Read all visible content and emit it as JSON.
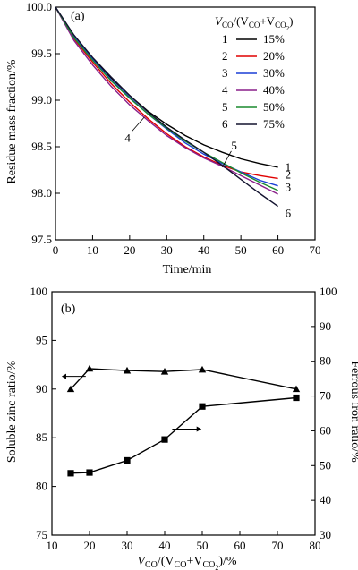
{
  "chart_data": [
    {
      "type": "line",
      "panel_label": "(a)",
      "xlabel": "Time/min",
      "ylabel": "Residue mass fraction/%",
      "xlim": [
        0,
        70
      ],
      "ylim": [
        97.5,
        100.0
      ],
      "x_ticks": [
        "0",
        "10",
        "20",
        "30",
        "40",
        "50",
        "60",
        "70"
      ],
      "y_ticks": [
        "97.5",
        "98.0",
        "98.5",
        "99.0",
        "99.5",
        "100.0"
      ],
      "grid": false,
      "legend": {
        "placement": "top-right",
        "title_main": "V",
        "title_sub1": "CO",
        "title_mid": "/(V",
        "title_sub2": "CO",
        "title_plus": "+V",
        "title_sub3": "CO",
        "title_sub4": "2",
        "title_close": ")",
        "entries": [
          {
            "id": "1",
            "label": "15%"
          },
          {
            "id": "2",
            "label": "20%"
          },
          {
            "id": "3",
            "label": "30%"
          },
          {
            "id": "4",
            "label": "40%"
          },
          {
            "id": "5",
            "label": "50%"
          },
          {
            "id": "6",
            "label": "75%"
          }
        ]
      },
      "series": [
        {
          "name": "1",
          "label": "1",
          "color": "#000000",
          "x": [
            0,
            5,
            10,
            15,
            20,
            25,
            30,
            35,
            40,
            45,
            50,
            55,
            60
          ],
          "y": [
            100.0,
            99.68,
            99.45,
            99.24,
            99.05,
            98.88,
            98.74,
            98.62,
            98.52,
            98.44,
            98.37,
            98.32,
            98.28
          ]
        },
        {
          "name": "2",
          "label": "2",
          "color": "#e00000",
          "x": [
            0,
            5,
            10,
            15,
            20,
            25,
            30,
            35,
            40,
            45,
            50,
            55,
            60
          ],
          "y": [
            100.0,
            99.66,
            99.41,
            99.18,
            98.98,
            98.8,
            98.64,
            98.5,
            98.39,
            98.3,
            98.23,
            98.19,
            98.16
          ]
        },
        {
          "name": "3",
          "label": "3",
          "color": "#1a3fd6",
          "x": [
            0,
            5,
            10,
            15,
            20,
            25,
            30,
            35,
            40,
            45,
            50,
            55,
            60
          ],
          "y": [
            100.0,
            99.68,
            99.44,
            99.22,
            99.03,
            98.85,
            98.69,
            98.54,
            98.42,
            98.32,
            98.23,
            98.14,
            98.08
          ]
        },
        {
          "name": "4",
          "label": "4",
          "color": "#8a1e8a",
          "x": [
            0,
            5,
            10,
            15,
            20,
            25,
            30,
            35,
            40,
            45,
            50,
            55,
            60
          ],
          "y": [
            100.0,
            99.64,
            99.38,
            99.15,
            98.95,
            98.78,
            98.62,
            98.49,
            98.38,
            98.29,
            98.19,
            98.09,
            97.99
          ]
        },
        {
          "name": "5",
          "label": "5",
          "color": "#1a8a2e",
          "x": [
            0,
            5,
            10,
            15,
            20,
            25,
            30,
            35,
            40,
            45,
            50,
            55,
            60
          ],
          "y": [
            100.0,
            99.67,
            99.43,
            99.21,
            99.02,
            98.85,
            98.7,
            98.56,
            98.44,
            98.33,
            98.22,
            98.12,
            98.03
          ]
        },
        {
          "name": "6",
          "label": "6",
          "color": "#12122e",
          "x": [
            0,
            5,
            10,
            15,
            20,
            25,
            30,
            35,
            40,
            45,
            50,
            55,
            60
          ],
          "y": [
            100.0,
            99.7,
            99.46,
            99.25,
            99.05,
            98.87,
            98.71,
            98.57,
            98.44,
            98.3,
            98.15,
            98.0,
            97.86
          ]
        }
      ]
    },
    {
      "type": "line",
      "panel_label": "(b)",
      "xlabel_parts": {
        "v": "V",
        "sub1": "CO",
        "mid": "/(V",
        "sub2": "CO",
        "plus": "+V",
        "sub3": "CO",
        "sub4": "2",
        "close": ")/%"
      },
      "ylabel_left": "Soluble zinc ratio/%",
      "ylabel_right": "Ferrous iron ratio/%",
      "xlim": [
        10,
        80
      ],
      "ylim_left": [
        75,
        100
      ],
      "ylim_right": [
        30,
        100
      ],
      "x_ticks": [
        "10",
        "20",
        "30",
        "40",
        "50",
        "60",
        "70",
        "80"
      ],
      "y_ticks_left": [
        "75",
        "80",
        "85",
        "90",
        "95",
        "100"
      ],
      "y_ticks_right": [
        "30",
        "40",
        "50",
        "60",
        "70",
        "80",
        "90",
        "100"
      ],
      "grid": false,
      "series": [
        {
          "name": "Soluble zinc ratio",
          "axis": "left",
          "marker": "triangle",
          "color": "#000000",
          "x": [
            15,
            20,
            30,
            40,
            50,
            75
          ],
          "y": [
            90.0,
            92.1,
            91.9,
            91.8,
            92.0,
            90.0
          ]
        },
        {
          "name": "Ferrous iron ratio",
          "axis": "right",
          "marker": "square",
          "color": "#000000",
          "x": [
            15,
            20,
            30,
            40,
            50,
            75
          ],
          "y": [
            47.8,
            48.0,
            51.5,
            57.5,
            67.0,
            69.5
          ]
        }
      ],
      "annotations": [
        {
          "type": "arrow",
          "direction": "left",
          "points_to": "left-axis"
        },
        {
          "type": "arrow",
          "direction": "right",
          "points_to": "right-axis"
        }
      ]
    }
  ]
}
